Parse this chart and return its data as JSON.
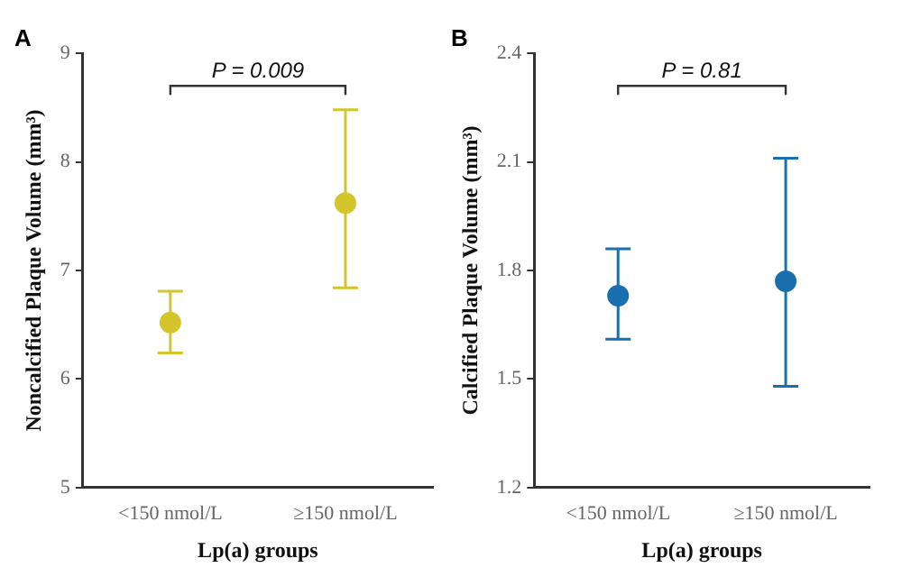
{
  "chart_data": [
    {
      "type": "scatter",
      "title": "A",
      "xlabel": "Lp(a) groups",
      "ylabel": "Noncalcified Plaque Volume (mm³)",
      "categories": [
        "<150 nmol/L",
        "≥150 nmol/L"
      ],
      "series": [
        {
          "color": "#d4c52c",
          "values": [
            6.52,
            7.62
          ],
          "errors": [
            [
              6.24,
              6.81
            ],
            [
              6.84,
              8.48
            ]
          ]
        }
      ],
      "ylim": [
        5,
        9
      ],
      "yticks": [
        5,
        6,
        7,
        8,
        9
      ],
      "grid": false,
      "legend": false,
      "marker": "circle",
      "annotations": [
        "P = 0.009"
      ]
    },
    {
      "type": "scatter",
      "title": "B",
      "xlabel": "Lp(a) groups",
      "ylabel": "Calcified Plaque Volume (mm³)",
      "categories": [
        "<150 nmol/L",
        "≥150 nmol/L"
      ],
      "series": [
        {
          "color": "#1a6faf",
          "values": [
            1.73,
            1.77
          ],
          "errors": [
            [
              1.61,
              1.86
            ],
            [
              1.48,
              2.11
            ]
          ]
        }
      ],
      "ylim": [
        1.2,
        2.4
      ],
      "yticks": [
        1.2,
        1.5,
        1.8,
        2.1,
        2.4
      ],
      "grid": false,
      "legend": false,
      "marker": "circle",
      "annotations": [
        "P = 0.81"
      ]
    }
  ]
}
